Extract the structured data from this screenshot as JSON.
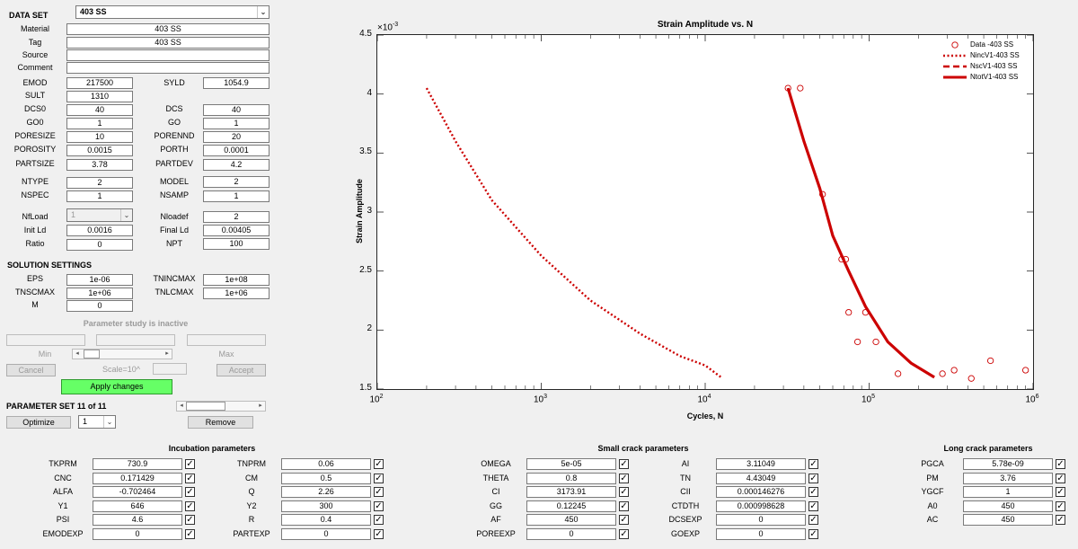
{
  "dataset": {
    "label": "DATA SET",
    "selected": "403 SS"
  },
  "fields": {
    "material": {
      "label": "Material",
      "value": "403 SS"
    },
    "tag": {
      "label": "Tag",
      "value": "403 SS"
    },
    "source": {
      "label": "Source",
      "value": ""
    },
    "comment": {
      "label": "Comment",
      "value": ""
    },
    "emod": {
      "label": "EMOD",
      "value": "217500"
    },
    "syld": {
      "label": "SYLD",
      "value": "1054.9"
    },
    "sult": {
      "label": "SULT",
      "value": "1310"
    },
    "dcs0": {
      "label": "DCS0",
      "value": "40"
    },
    "dcs": {
      "label": "DCS",
      "value": "40"
    },
    "go0": {
      "label": "GO0",
      "value": "1"
    },
    "go": {
      "label": "GO",
      "value": "1"
    },
    "poresize": {
      "label": "PORESIZE",
      "value": "10"
    },
    "porennd": {
      "label": "PORENND",
      "value": "20"
    },
    "porosity": {
      "label": "POROSITY",
      "value": "0.0015"
    },
    "porth": {
      "label": "PORTH",
      "value": "0.0001"
    },
    "partsize": {
      "label": "PARTSIZE",
      "value": "3.78"
    },
    "partdev": {
      "label": "PARTDEV",
      "value": "4.2"
    },
    "ntype": {
      "label": "NTYPE",
      "value": "2"
    },
    "model": {
      "label": "MODEL",
      "value": "2"
    },
    "nspec": {
      "label": "NSPEC",
      "value": "1"
    },
    "nsamp": {
      "label": "NSAMP",
      "value": "1"
    },
    "nfload": {
      "label": "NfLoad",
      "value": "1"
    },
    "nloadef": {
      "label": "Nloadef",
      "value": "2"
    },
    "initld": {
      "label": "Init Ld",
      "value": "0.0016"
    },
    "finalld": {
      "label": "Final Ld",
      "value": "0.00405"
    },
    "ratio": {
      "label": "Ratio",
      "value": "0"
    },
    "npt": {
      "label": "NPT",
      "value": "100"
    }
  },
  "solution": {
    "title": "SOLUTION SETTINGS",
    "eps": {
      "label": "EPS",
      "value": "1e-06"
    },
    "tnincmax": {
      "label": "TNINCMAX",
      "value": "1e+08"
    },
    "tnscmax": {
      "label": "TNSCMAX",
      "value": "1e+06"
    },
    "tnlcmax": {
      "label": "TNLCMAX",
      "value": "1e+06"
    },
    "m": {
      "label": "M",
      "value": "0"
    }
  },
  "study": {
    "status": "Parameter study is inactive",
    "min_label": "Min",
    "max_label": "Max",
    "scale_label": "Scale=10^",
    "cancel_label": "Cancel",
    "accept_label": "Accept",
    "apply_label": "Apply changes",
    "apply_color": "#66ff66"
  },
  "paramset": {
    "title": "PARAMETER SET 11 of 11",
    "optimize_label": "Optimize",
    "optimize_value": "1",
    "remove_label": "Remove"
  },
  "chart_data": {
    "type": "scatter+line",
    "title": "Strain Amplitude vs. N",
    "xlabel": "Cycles, N",
    "ylabel": "Strain Amplitude",
    "xscale": "log",
    "xlim": [
      100,
      1000000
    ],
    "ylim": [
      0.0015,
      0.0045
    ],
    "y_exponent_label": "×10",
    "y_exponent_power": "-3",
    "x_ticks": [
      {
        "base": "10",
        "exp": "2",
        "value": 100
      },
      {
        "base": "10",
        "exp": "3",
        "value": 1000
      },
      {
        "base": "10",
        "exp": "4",
        "value": 10000
      },
      {
        "base": "10",
        "exp": "5",
        "value": 100000
      },
      {
        "base": "10",
        "exp": "6",
        "value": 1000000
      }
    ],
    "y_ticks": [
      {
        "label": "1.5",
        "value": 0.0015
      },
      {
        "label": "2",
        "value": 0.002
      },
      {
        "label": "2.5",
        "value": 0.0025
      },
      {
        "label": "3",
        "value": 0.003
      },
      {
        "label": "3.5",
        "value": 0.0035
      },
      {
        "label": "4",
        "value": 0.004
      },
      {
        "label": "4.5",
        "value": 0.0045
      }
    ],
    "color": "#cc0000",
    "legend_position": "top-right",
    "series": [
      {
        "name": "Data -403 SS",
        "style": "markers",
        "points": [
          [
            32000,
            0.00405
          ],
          [
            38000,
            0.00405
          ],
          [
            52000,
            0.00315
          ],
          [
            68000,
            0.0026
          ],
          [
            72000,
            0.0026
          ],
          [
            75000,
            0.00215
          ],
          [
            85000,
            0.0019
          ],
          [
            95000,
            0.00215
          ],
          [
            110000,
            0.0019
          ],
          [
            150000,
            0.00163
          ],
          [
            280000,
            0.00163
          ],
          [
            330000,
            0.00166
          ],
          [
            420000,
            0.00159
          ],
          [
            550000,
            0.00174
          ],
          [
            900000,
            0.00166
          ]
        ]
      },
      {
        "name": "NincV1-403 SS",
        "style": "dotted",
        "points": [
          [
            200,
            0.00405
          ],
          [
            300,
            0.0036
          ],
          [
            500,
            0.0031
          ],
          [
            1000,
            0.00263
          ],
          [
            2000,
            0.00225
          ],
          [
            4000,
            0.00197
          ],
          [
            7000,
            0.00178
          ],
          [
            10000,
            0.0017
          ],
          [
            12500,
            0.0016
          ]
        ]
      },
      {
        "name": "NscV1-403 SS",
        "style": "dashed",
        "points": [
          [
            32000,
            0.00405
          ],
          [
            40000,
            0.0036
          ],
          [
            50000,
            0.0032
          ],
          [
            60000,
            0.0028
          ],
          [
            75000,
            0.0025
          ],
          [
            95000,
            0.0022
          ],
          [
            130000,
            0.0019
          ],
          [
            180000,
            0.00172
          ],
          [
            250000,
            0.0016
          ]
        ]
      },
      {
        "name": "NtotV1-403 SS",
        "style": "solid",
        "points": [
          [
            32000,
            0.00405
          ],
          [
            40000,
            0.0036
          ],
          [
            50000,
            0.0032
          ],
          [
            60000,
            0.0028
          ],
          [
            75000,
            0.0025
          ],
          [
            95000,
            0.0022
          ],
          [
            130000,
            0.0019
          ],
          [
            180000,
            0.00172
          ],
          [
            250000,
            0.0016
          ]
        ]
      }
    ]
  },
  "incubation": {
    "title": "Incubation parameters",
    "left": [
      {
        "label": "TKPRM",
        "value": "730.9"
      },
      {
        "label": "CNC",
        "value": "0.171429"
      },
      {
        "label": "ALFA",
        "value": "-0.702464"
      },
      {
        "label": "Y1",
        "value": "646"
      },
      {
        "label": "PSI",
        "value": "4.6"
      },
      {
        "label": "EMODEXP",
        "value": "0"
      }
    ],
    "right": [
      {
        "label": "TNPRM",
        "value": "0.06"
      },
      {
        "label": "CM",
        "value": "0.5"
      },
      {
        "label": "Q",
        "value": "2.26"
      },
      {
        "label": "Y2",
        "value": "300"
      },
      {
        "label": "R",
        "value": "0.4"
      },
      {
        "label": "PARTEXP",
        "value": "0"
      }
    ]
  },
  "smallcrack": {
    "title": "Small crack parameters",
    "left": [
      {
        "label": "OMEGA",
        "value": "5e-05"
      },
      {
        "label": "THETA",
        "value": "0.8"
      },
      {
        "label": "CI",
        "value": "3173.91"
      },
      {
        "label": "GG",
        "value": "0.12245"
      },
      {
        "label": "AF",
        "value": "450"
      },
      {
        "label": "POREEXP",
        "value": "0"
      }
    ],
    "right": [
      {
        "label": "AI",
        "value": "3.11049"
      },
      {
        "label": "TN",
        "value": "4.43049"
      },
      {
        "label": "CII",
        "value": "0.000146276"
      },
      {
        "label": "CTDTH",
        "value": "0.000998628"
      },
      {
        "label": "DCSEXP",
        "value": "0"
      },
      {
        "label": "GOEXP",
        "value": "0"
      }
    ]
  },
  "longcrack": {
    "title": "Long crack parameters",
    "rows": [
      {
        "label": "PGCA",
        "value": "5.78e-09"
      },
      {
        "label": "PM",
        "value": "3.76"
      },
      {
        "label": "YGCF",
        "value": "1"
      },
      {
        "label": "A0",
        "value": "450"
      },
      {
        "label": "AC",
        "value": "450"
      }
    ]
  },
  "check_glyph": "✓"
}
